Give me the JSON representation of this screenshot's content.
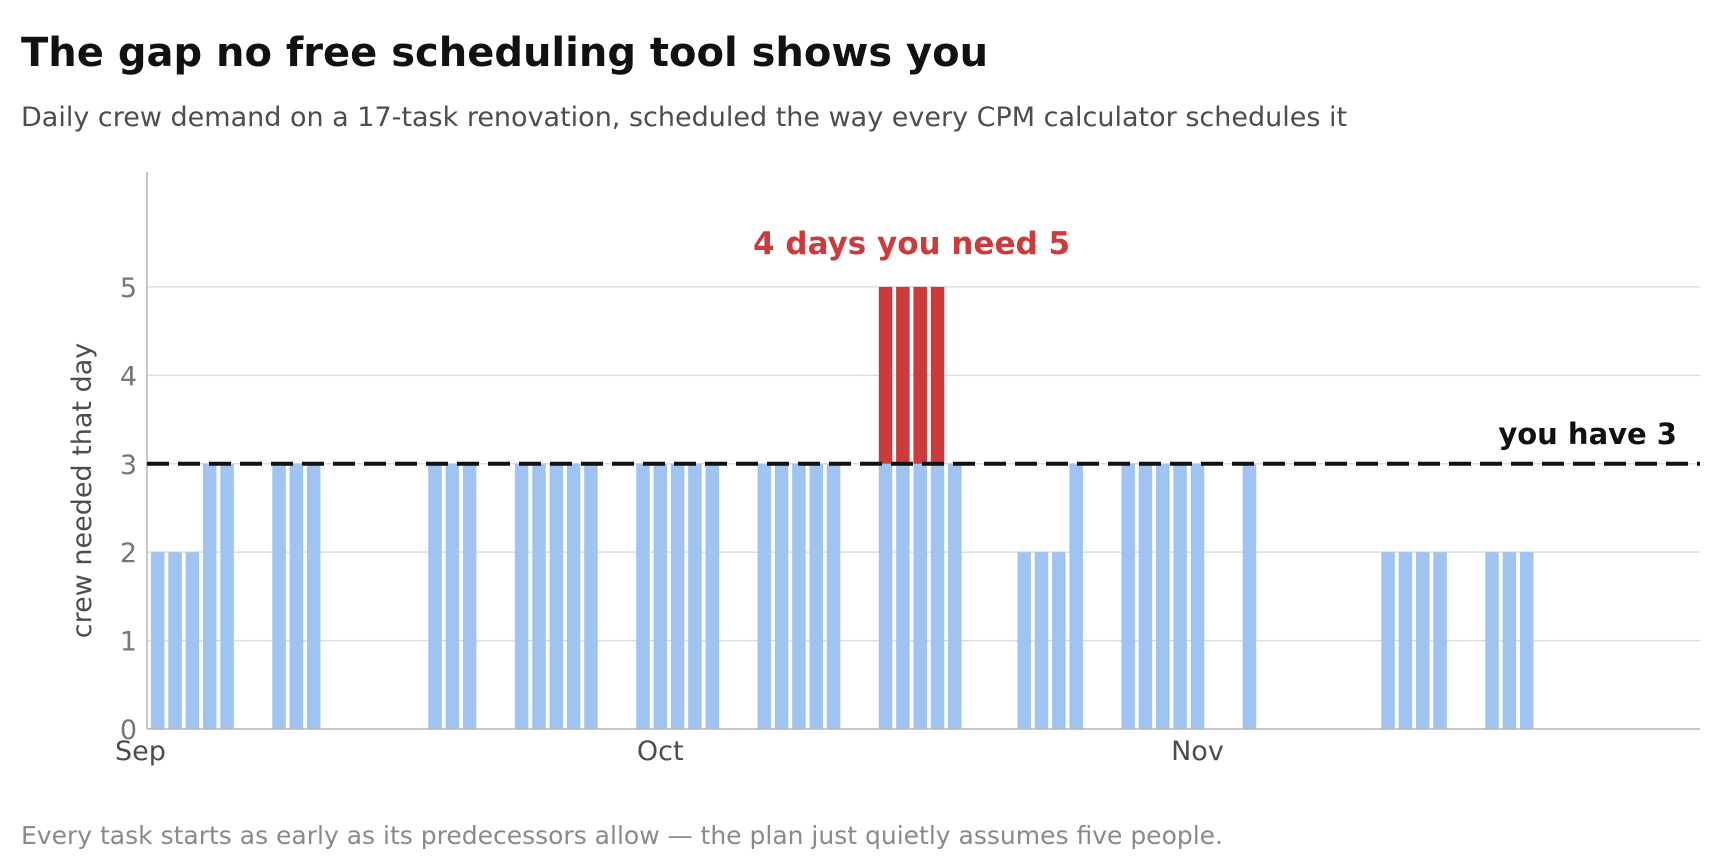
{
  "title": "The gap no free scheduling tool shows you",
  "subtitle": "Daily crew demand on a 17-task renovation, scheduled the way every CPM calculator schedules it",
  "footnote": "Every task starts as early as its predecessors allow — the plan just quietly assumes five people.",
  "chart_data": {
    "type": "bar",
    "title": "The gap no free scheduling tool shows you",
    "subtitle": "Daily crew demand on a 17-task renovation, scheduled the way every CPM calculator schedules it",
    "xlabel": "",
    "ylabel": "crew needed that day",
    "ylim": [
      0,
      6.3
    ],
    "yticks": [
      0,
      1,
      2,
      3,
      4,
      5
    ],
    "grid": true,
    "x_start": "2024-09-02",
    "x_end": "2024-11-30",
    "x_ticks": [
      {
        "label": "Sep",
        "date": "2024-09-01"
      },
      {
        "label": "Oct",
        "date": "2024-10-01"
      },
      {
        "label": "Nov",
        "date": "2024-11-01"
      }
    ],
    "bars": [
      {
        "date": "2024-09-02",
        "value": 2
      },
      {
        "date": "2024-09-03",
        "value": 2
      },
      {
        "date": "2024-09-04",
        "value": 2
      },
      {
        "date": "2024-09-05",
        "value": 3
      },
      {
        "date": "2024-09-06",
        "value": 3
      },
      {
        "date": "2024-09-09",
        "value": 3
      },
      {
        "date": "2024-09-10",
        "value": 3
      },
      {
        "date": "2024-09-11",
        "value": 3
      },
      {
        "date": "2024-09-18",
        "value": 3
      },
      {
        "date": "2024-09-19",
        "value": 3
      },
      {
        "date": "2024-09-20",
        "value": 3
      },
      {
        "date": "2024-09-23",
        "value": 3
      },
      {
        "date": "2024-09-24",
        "value": 3
      },
      {
        "date": "2024-09-25",
        "value": 3
      },
      {
        "date": "2024-09-26",
        "value": 3
      },
      {
        "date": "2024-09-27",
        "value": 3
      },
      {
        "date": "2024-09-30",
        "value": 3
      },
      {
        "date": "2024-10-01",
        "value": 3
      },
      {
        "date": "2024-10-02",
        "value": 3
      },
      {
        "date": "2024-10-03",
        "value": 3
      },
      {
        "date": "2024-10-04",
        "value": 3
      },
      {
        "date": "2024-10-07",
        "value": 3
      },
      {
        "date": "2024-10-08",
        "value": 3
      },
      {
        "date": "2024-10-09",
        "value": 3
      },
      {
        "date": "2024-10-10",
        "value": 3
      },
      {
        "date": "2024-10-11",
        "value": 3
      },
      {
        "date": "2024-10-14",
        "value": 5
      },
      {
        "date": "2024-10-15",
        "value": 5
      },
      {
        "date": "2024-10-16",
        "value": 5
      },
      {
        "date": "2024-10-17",
        "value": 5
      },
      {
        "date": "2024-10-18",
        "value": 3
      },
      {
        "date": "2024-10-22",
        "value": 2
      },
      {
        "date": "2024-10-23",
        "value": 2
      },
      {
        "date": "2024-10-24",
        "value": 2
      },
      {
        "date": "2024-10-25",
        "value": 3
      },
      {
        "date": "2024-10-28",
        "value": 3
      },
      {
        "date": "2024-10-29",
        "value": 3
      },
      {
        "date": "2024-10-30",
        "value": 3
      },
      {
        "date": "2024-10-31",
        "value": 3
      },
      {
        "date": "2024-11-01",
        "value": 3
      },
      {
        "date": "2024-11-04",
        "value": 3
      },
      {
        "date": "2024-11-12",
        "value": 2
      },
      {
        "date": "2024-11-13",
        "value": 2
      },
      {
        "date": "2024-11-14",
        "value": 2
      },
      {
        "date": "2024-11-15",
        "value": 2
      },
      {
        "date": "2024-11-18",
        "value": 2
      },
      {
        "date": "2024-11-19",
        "value": 2
      },
      {
        "date": "2024-11-20",
        "value": 2
      }
    ],
    "capacity": {
      "value": 3,
      "label": "you have 3"
    },
    "annotation": {
      "text": "4 days you need 5",
      "value": 5
    },
    "colors": {
      "normal": "#a0c4f2",
      "over": "#cc3b3b",
      "capacity_line": "#111111",
      "annotation": "#cc3b3b",
      "grid": "#dddddd",
      "axis": "#b5b5b5"
    }
  }
}
